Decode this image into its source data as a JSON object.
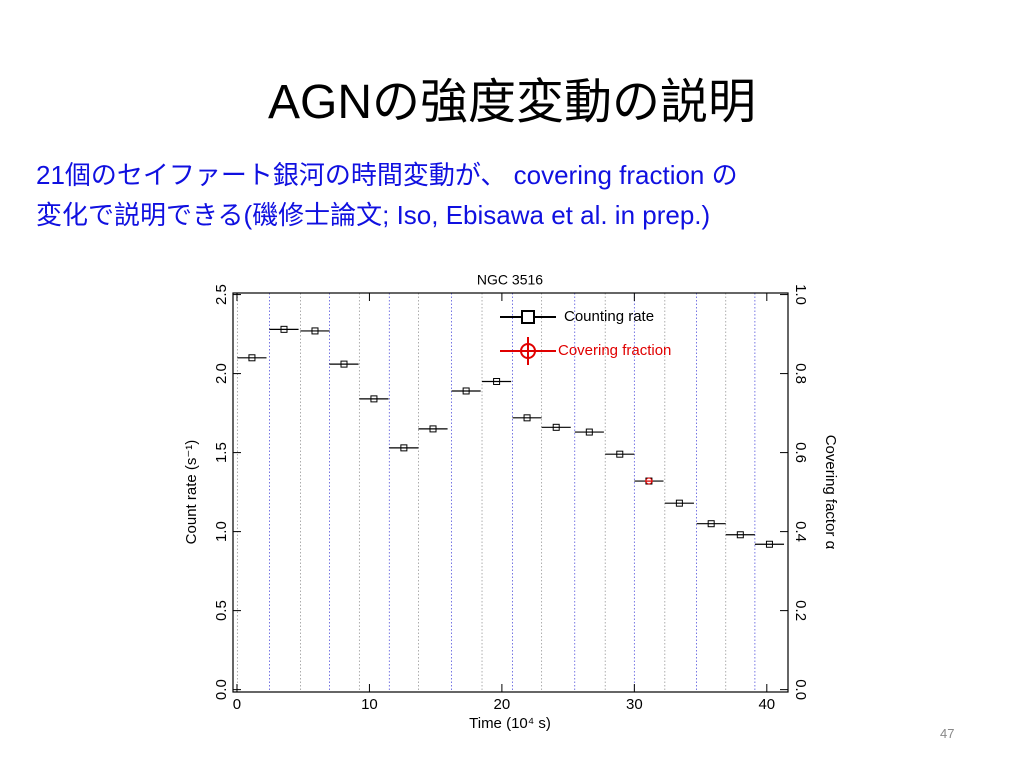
{
  "header": {
    "title": "AGNの強度変動の説明"
  },
  "body": {
    "lines": [
      "21個のセイファート銀河の時間変動が、 covering fraction の",
      "変化で説明できる(磯修士論文; Iso, Ebisawa et al. in prep.)"
    ]
  },
  "page_number": "47",
  "chart_data": {
    "type": "errorbar",
    "title": "NGC 3516",
    "x_label": "Time (10⁴ s)",
    "y_label": "Count rate (s⁻¹)",
    "y2_label": "Covering factor α",
    "xlim": [
      -0.3,
      41.6
    ],
    "xticks": [
      0,
      10,
      20,
      30,
      40
    ],
    "ylim": [
      -0.015,
      2.51
    ],
    "yticks": [
      {
        "value": 0,
        "label": "0.0"
      },
      {
        "value": 0.5,
        "label": "0.5"
      },
      {
        "value": 1,
        "label": "1.0"
      },
      {
        "value": 1.5,
        "label": "1.5"
      },
      {
        "value": 2,
        "label": "2.0"
      },
      {
        "value": 2.5,
        "label": "2.5"
      }
    ],
    "y2lim": [
      -0.006,
      1.004
    ],
    "y2ticks": [
      {
        "value": 0,
        "label": "0.0"
      },
      {
        "value": 0.2,
        "label": "0.2"
      },
      {
        "value": 0.4,
        "label": "0.4"
      },
      {
        "value": 0.6,
        "label": "0.6"
      },
      {
        "value": 0.8,
        "label": "0.8"
      },
      {
        "value": 1,
        "label": "1.0"
      }
    ],
    "series": [
      {
        "name": "Counting rate",
        "color": "#000000",
        "marker": "square",
        "x": [
          1.13,
          3.55,
          5.89,
          8.08,
          10.34,
          12.6,
          14.8,
          17.3,
          19.6,
          21.9,
          24.1,
          26.6,
          28.9,
          31.1,
          33.4,
          35.8,
          38.0,
          40.2
        ],
        "xerr": [
          1.1,
          1.1,
          1.1,
          1.1,
          1.1,
          1.1,
          1.1,
          1.1,
          1.1,
          1.1,
          1.1,
          1.1,
          1.1,
          1.1,
          1.1,
          1.1,
          1.1,
          1.1
        ],
        "values": [
          2.1,
          2.28,
          2.27,
          2.06,
          1.84,
          1.53,
          1.65,
          1.89,
          1.95,
          1.72,
          1.66,
          1.63,
          1.49,
          1.32,
          1.18,
          1.05,
          0.98,
          0.92
        ]
      },
      {
        "name": "Covering fraction",
        "color": "#e00000",
        "marker": "circle",
        "axis": "y2",
        "x": [
          31.1
        ],
        "xerr": [
          0.3
        ],
        "values": [
          0.528
        ]
      }
    ]
  }
}
